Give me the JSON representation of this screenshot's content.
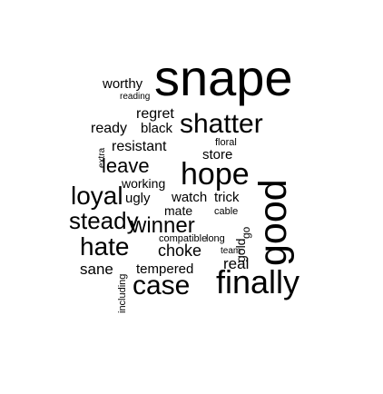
{
  "words": {
    "snape": "snape",
    "worthy": "worthy",
    "reading": "reading",
    "regret": "regret",
    "ready": "ready",
    "black": "black",
    "shatter": "shatter",
    "floral": "floral",
    "resistant": "resistant",
    "store": "store",
    "extra": "extra",
    "leave": "leave",
    "hope": "hope",
    "working": "working",
    "loyal": "loyal",
    "ugly": "ugly",
    "watch": "watch",
    "trick": "trick",
    "mate": "mate",
    "cable": "cable",
    "steady": "steady",
    "winner": "winner",
    "compatible": "compatible",
    "long": "long",
    "hate": "hate",
    "choke": "choke",
    "team": "team",
    "sane": "sane",
    "tempered": "tempered",
    "real": "real",
    "case": "case",
    "finally": "finally",
    "including": "including",
    "good": "good",
    "gold": "gold",
    "go": "go"
  }
}
